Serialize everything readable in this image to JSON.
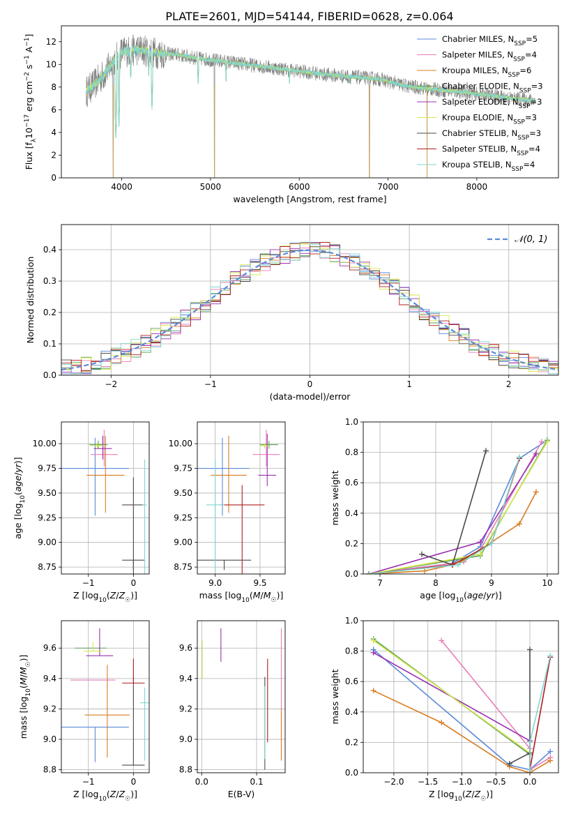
{
  "title": "PLATE=2601, MJD=54144, FIBERID=0628, z=0.064",
  "colors": {
    "chabrier_miles": "#5b8ad8",
    "salpeter_miles": "#e87cb8",
    "kroupa_miles": "#d97c22",
    "chabrier_elodie": "#5aa05a",
    "salpeter_elodie": "#9a2fb0",
    "kroupa_elodie": "#d6e84a",
    "chabrier_stelib": "#4a4a4a",
    "salpeter_stelib": "#b01c1c",
    "kroupa_stelib": "#7fd6d0",
    "data_gray": "#808080"
  },
  "legend": {
    "spectrum": [
      {
        "label": "Chabrier MILES, N",
        "sub": "SSP",
        "suffix": "=5",
        "color_key": "chabrier_miles"
      },
      {
        "label": "Salpeter MILES, N",
        "sub": "SSP",
        "suffix": "=4",
        "color_key": "salpeter_miles"
      },
      {
        "label": "Kroupa MILES, N",
        "sub": "SSP",
        "suffix": "=6",
        "color_key": "kroupa_miles"
      },
      {
        "label": "Chabrier ELODIE, N",
        "sub": "SSP",
        "suffix": "=3",
        "color_key": "chabrier_elodie"
      },
      {
        "label": "Salpeter ELODIE, N",
        "sub": "SSP",
        "suffix": "=3",
        "color_key": "salpeter_elodie"
      },
      {
        "label": "Kroupa ELODIE, N",
        "sub": "SSP",
        "suffix": "=3",
        "color_key": "kroupa_elodie"
      },
      {
        "label": "Chabrier STELIB, N",
        "sub": "SSP",
        "suffix": "=3",
        "color_key": "chabrier_stelib"
      },
      {
        "label": "Salpeter STELIB, N",
        "sub": "SSP",
        "suffix": "=4",
        "color_key": "salpeter_stelib"
      },
      {
        "label": "Kroupa STELIB, N",
        "sub": "SSP",
        "suffix": "=4",
        "color_key": "kroupa_stelib"
      }
    ],
    "residual": "𝒩(0, 1)"
  },
  "chart_data": [
    {
      "id": "spectrum",
      "type": "line",
      "title": "PLATE=2601, MJD=54144, FIBERID=0628, z=0.064",
      "xlabel": "wavelength [Angstrom, rest frame]",
      "ylabel": "Flux [f",
      "ylabel_full": "Flux [f_λ 10^-17 erg cm^-2 s^-1 A^-1]",
      "xlim": [
        3320,
        8920
      ],
      "ylim": [
        0,
        13.4
      ],
      "xticks": [
        4000,
        5000,
        6000,
        7000,
        8000
      ],
      "yticks": [
        0,
        2,
        4,
        6,
        8,
        10,
        12
      ],
      "continuum": [
        [
          3600,
          7.6
        ],
        [
          3700,
          8.3
        ],
        [
          3800,
          9.1
        ],
        [
          3900,
          10.2
        ],
        [
          4000,
          11.1
        ],
        [
          4200,
          11.3
        ],
        [
          4400,
          11.0
        ],
        [
          4600,
          10.9
        ],
        [
          4800,
          10.6
        ],
        [
          5000,
          10.4
        ],
        [
          5200,
          10.2
        ],
        [
          5500,
          9.9
        ],
        [
          5800,
          9.6
        ],
        [
          6000,
          9.4
        ],
        [
          6300,
          9.1
        ],
        [
          6600,
          8.9
        ],
        [
          6900,
          8.7
        ],
        [
          7200,
          8.1
        ],
        [
          7500,
          7.8
        ],
        [
          7800,
          7.6
        ],
        [
          8100,
          7.3
        ],
        [
          8400,
          7.0
        ],
        [
          8650,
          6.8
        ]
      ],
      "absorption_lines": [
        [
          3934,
          3.2
        ],
        [
          3969,
          4.5
        ],
        [
          4102,
          8.5
        ],
        [
          4305,
          9.0
        ],
        [
          4341,
          6.0
        ],
        [
          4861,
          8.0
        ],
        [
          5175,
          8.5
        ],
        [
          5890,
          8.0
        ],
        [
          6563,
          8.0
        ]
      ],
      "sky_artifacts": [
        [
          3905,
          0.0
        ],
        [
          5045,
          0.0
        ],
        [
          6790,
          0.0
        ],
        [
          7440,
          0.0
        ]
      ]
    },
    {
      "id": "residuals",
      "type": "line",
      "xlabel": "(data-model)/error",
      "ylabel": "Normed distribution",
      "xlim": [
        -2.5,
        2.5
      ],
      "ylim": [
        0,
        0.48
      ],
      "xticks": [
        -2,
        -1,
        0,
        1,
        2
      ],
      "yticks": [
        0.0,
        0.1,
        0.2,
        0.3,
        0.4
      ],
      "grid": true,
      "legend_position": "top-right",
      "series": [
        {
          "name": "𝒩(0, 1)",
          "color_key": "chabrier_miles",
          "style": "dashed",
          "function": "normal_pdf"
        }
      ]
    },
    {
      "id": "age_vs_Z",
      "type": "scatter",
      "xlabel": "Z [log",
      "xlabel_full": "Z [log10(Z/Z☉)]",
      "ylabel": "age  [log",
      "ylabel_full": "age [log10(age/yr)]",
      "xlim": [
        -1.6,
        0.35
      ],
      "ylim": [
        8.68,
        10.22
      ],
      "xticks": [
        -1,
        0
      ],
      "yticks": [
        8.75,
        9.0,
        9.25,
        9.5,
        9.75,
        10.0
      ],
      "grid": true,
      "points": [
        {
          "series": "chabrier_miles",
          "x": -0.85,
          "y": 9.75,
          "xerr": 0.75,
          "yerr": [
            0.48,
            0.31
          ]
        },
        {
          "series": "salpeter_miles",
          "x": -0.65,
          "y": 9.89,
          "xerr": 0.3,
          "yerr": [
            0.12,
            0.25
          ]
        },
        {
          "series": "kroupa_miles",
          "x": -0.62,
          "y": 9.68,
          "xerr": 0.42,
          "yerr": [
            0.38,
            0.4
          ]
        },
        {
          "series": "chabrier_elodie",
          "x": -0.78,
          "y": 9.99,
          "xerr": 0.2,
          "yerr": [
            0.04,
            0.04
          ]
        },
        {
          "series": "salpeter_elodie",
          "x": -0.68,
          "y": 9.95,
          "xerr": 0.2,
          "yerr": [
            0.11,
            0.13
          ]
        },
        {
          "series": "kroupa_elodie",
          "x": -0.8,
          "y": 9.98,
          "xerr": 0.15,
          "yerr": [
            0.03,
            0.03
          ]
        },
        {
          "series": "chabrier_stelib",
          "x": 0.0,
          "y": 9.38,
          "xerr": 0.25,
          "yerr": [
            0.7,
            0.28
          ]
        },
        {
          "series": "chabrier_stelib",
          "x": 0.0,
          "y": 8.82,
          "xerr": 0.25,
          "yerr": [
            0.1,
            0.0
          ]
        },
        {
          "series": "kroupa_stelib",
          "x": 0.25,
          "y": 9.38,
          "xerr": 0.05,
          "yerr": [
            0.7,
            0.46
          ]
        }
      ]
    },
    {
      "id": "age_vs_mass",
      "type": "scatter",
      "xlabel": "mass [log",
      "xlabel_full": "mass [log10(M/M☉)]",
      "xlim": [
        8.8,
        9.78
      ],
      "ylim": [
        8.68,
        10.22
      ],
      "xticks": [
        9.0,
        9.5
      ],
      "yticks": [
        8.75,
        9.0,
        9.25,
        9.5,
        9.75,
        10.0
      ],
      "grid": true,
      "points": [
        {
          "series": "chabrier_miles",
          "x": 9.08,
          "y": 9.75,
          "xerr": 0.3,
          "yerr": [
            0.48,
            0.31
          ]
        },
        {
          "series": "salpeter_miles",
          "x": 9.57,
          "y": 9.89,
          "xerr": 0.15,
          "yerr": [
            0.12,
            0.25
          ]
        },
        {
          "series": "kroupa_miles",
          "x": 9.15,
          "y": 9.68,
          "xerr": 0.2,
          "yerr": [
            0.38,
            0.4
          ]
        },
        {
          "series": "chabrier_elodie",
          "x": 9.6,
          "y": 9.99,
          "xerr": 0.1,
          "yerr": [
            0.04,
            0.04
          ]
        },
        {
          "series": "salpeter_elodie",
          "x": 9.58,
          "y": 9.68,
          "xerr": 0.1,
          "yerr": [
            0.11,
            0.42
          ]
        },
        {
          "series": "kroupa_elodie",
          "x": 9.55,
          "y": 9.98,
          "xerr": 0.05,
          "yerr": [
            0.03,
            0.03
          ]
        },
        {
          "series": "chabrier_stelib",
          "x": 9.1,
          "y": 8.82,
          "xerr": 0.3,
          "yerr": [
            0.1,
            0.0
          ]
        },
        {
          "series": "salpeter_stelib",
          "x": 9.3,
          "y": 9.38,
          "xerr": 0.25,
          "yerr": [
            0.7,
            0.2
          ]
        },
        {
          "series": "kroupa_stelib",
          "x": 9.0,
          "y": 9.38,
          "xerr": 0.1,
          "yerr": [
            0.7,
            0.46
          ]
        }
      ]
    },
    {
      "id": "mass_weight_vs_age",
      "type": "line",
      "xlabel": "age  [log",
      "xlabel_full": "age [log10(age/yr)]",
      "ylabel": "mass weight",
      "xlim": [
        6.7,
        10.2
      ],
      "ylim": [
        0,
        1.0
      ],
      "xticks": [
        7,
        8,
        9,
        10
      ],
      "yticks": [
        0.0,
        0.2,
        0.4,
        0.6,
        0.8,
        1.0
      ],
      "grid": true,
      "series": [
        {
          "name": "Chabrier MILES, NSSP=5",
          "color_key": "chabrier_miles",
          "x": [
            6.8,
            8.3,
            8.8,
            9.5,
            10.0
          ],
          "y": [
            0.0,
            0.07,
            0.18,
            0.76,
            0.88
          ]
        },
        {
          "name": "Salpeter MILES, NSSP=4",
          "color_key": "salpeter_miles",
          "x": [
            6.8,
            8.5,
            8.8,
            9.9
          ],
          "y": [
            0.0,
            0.08,
            0.16,
            0.87
          ]
        },
        {
          "name": "Kroupa MILES, NSSP=6",
          "color_key": "kroupa_miles",
          "x": [
            6.8,
            7.8,
            8.3,
            8.5,
            9.5,
            9.8
          ],
          "y": [
            0.0,
            0.02,
            0.06,
            0.09,
            0.33,
            0.54
          ]
        },
        {
          "name": "Chabrier ELODIE, NSSP=3",
          "color_key": "chabrier_elodie",
          "x": [
            6.8,
            8.8,
            10.0
          ],
          "y": [
            0.0,
            0.12,
            0.88
          ]
        },
        {
          "name": "Salpeter ELODIE, NSSP=3",
          "color_key": "salpeter_elodie",
          "x": [
            6.8,
            8.8,
            9.8
          ],
          "y": [
            0.0,
            0.21,
            0.79
          ]
        },
        {
          "name": "Kroupa ELODIE, NSSP=3",
          "color_key": "kroupa_elodie",
          "x": [
            6.8,
            8.8,
            10.0
          ],
          "y": [
            0.0,
            0.13,
            0.87
          ]
        },
        {
          "name": "Chabrier STELIB, NSSP=3",
          "color_key": "chabrier_stelib",
          "x": [
            7.75,
            8.3,
            8.9
          ],
          "y": [
            0.13,
            0.06,
            0.81
          ]
        },
        {
          "name": "Salpeter STELIB, NSSP=4",
          "color_key": "salpeter_stelib",
          "x": [
            6.8,
            8.3,
            9.0,
            9.5
          ],
          "y": [
            0.0,
            0.06,
            0.2,
            0.76
          ]
        },
        {
          "name": "Kroupa STELIB, NSSP=4",
          "color_key": "kroupa_stelib",
          "x": [
            6.8,
            8.4,
            9.0,
            9.5
          ],
          "y": [
            0.0,
            0.06,
            0.2,
            0.77
          ]
        }
      ]
    },
    {
      "id": "mass_vs_Z",
      "type": "scatter",
      "xlabel": "Z [log",
      "xlabel_full": "Z [log10(Z/Z☉)]",
      "ylabel": "mass [log",
      "ylabel_full": "mass [log10(M/M☉)]",
      "xlim": [
        -1.6,
        0.35
      ],
      "ylim": [
        8.78,
        9.78
      ],
      "xticks": [
        -1,
        0
      ],
      "yticks": [
        8.8,
        9.0,
        9.2,
        9.4,
        9.6
      ],
      "grid": true,
      "points": [
        {
          "series": "chabrier_miles",
          "x": -0.85,
          "y": 9.08,
          "xerr": 0.75,
          "yerr": [
            0.23,
            0.0
          ]
        },
        {
          "series": "salpeter_miles",
          "x": -0.9,
          "y": 9.39,
          "xerr": 0.5,
          "yerr": [
            0.0,
            0.0
          ]
        },
        {
          "series": "kroupa_miles",
          "x": -0.58,
          "y": 9.16,
          "xerr": 0.5,
          "yerr": [
            0.28,
            0.33
          ]
        },
        {
          "series": "chabrier_elodie",
          "x": -0.95,
          "y": 9.6,
          "xerr": 0.35,
          "yerr": [
            0.0,
            0.0
          ]
        },
        {
          "series": "salpeter_elodie",
          "x": -0.75,
          "y": 9.55,
          "xerr": 0.3,
          "yerr": [
            0.0,
            0.18
          ]
        },
        {
          "series": "kroupa_elodie",
          "x": -0.9,
          "y": 9.58,
          "xerr": 0.2,
          "yerr": [
            0.0,
            0.06
          ]
        },
        {
          "series": "chabrier_stelib",
          "x": 0.0,
          "y": 8.83,
          "xerr": 0.25,
          "yerr": [
            0.0,
            0.58
          ]
        },
        {
          "series": "salpeter_stelib",
          "x": 0.0,
          "y": 9.37,
          "xerr": 0.25,
          "yerr": [
            0.0,
            0.16
          ]
        },
        {
          "series": "kroupa_stelib",
          "x": 0.25,
          "y": 9.24,
          "xerr": 0.1,
          "yerr": [
            0.38,
            0.1
          ]
        }
      ]
    },
    {
      "id": "mass_vs_ebv",
      "type": "scatter",
      "xlabel": "E(B-V)",
      "xlim": [
        -0.008,
        0.152
      ],
      "ylim": [
        8.78,
        9.78
      ],
      "xticks": [
        0.0,
        0.1
      ],
      "yticks": [
        8.8,
        9.0,
        9.2,
        9.4,
        9.6
      ],
      "grid": true,
      "points": [
        {
          "series": "kroupa_elodie",
          "x": 0.001,
          "y": 9.55,
          "xerr": 0.0,
          "yerr": [
            0.15,
            0.1
          ]
        },
        {
          "series": "salpeter_elodie",
          "x": 0.035,
          "y": 9.6,
          "xerr": 0.0,
          "yerr": [
            0.09,
            0.13
          ]
        },
        {
          "series": "chabrier_stelib",
          "x": 0.115,
          "y": 9.2,
          "xerr": 0.0,
          "yerr": [
            0.4,
            0.21
          ]
        },
        {
          "series": "kroupa_stelib",
          "x": 0.115,
          "y": 9.15,
          "xerr": 0.0,
          "yerr": [
            0.28,
            0.2
          ]
        },
        {
          "series": "salpeter_stelib",
          "x": 0.12,
          "y": 9.25,
          "xerr": 0.0,
          "yerr": [
            0.27,
            0.28
          ]
        },
        {
          "series": "salpeter_miles",
          "x": 0.145,
          "y": 9.35,
          "xerr": 0.0,
          "yerr": [
            0.47,
            0.38
          ]
        },
        {
          "series": "kroupa_miles",
          "x": 0.145,
          "y": 9.2,
          "xerr": 0.0,
          "yerr": [
            0.34,
            0.0
          ]
        }
      ]
    },
    {
      "id": "mass_weight_vs_Z",
      "type": "line",
      "xlabel": "Z [log",
      "xlabel_full": "Z [log10(Z/Z☉)]",
      "ylabel": "mass weight",
      "xlim": [
        -2.45,
        0.42
      ],
      "ylim": [
        0,
        1.0
      ],
      "xticks": [
        -2.0,
        -1.5,
        -1.0,
        -0.5,
        0.0
      ],
      "yticks": [
        0.0,
        0.2,
        0.4,
        0.6,
        0.8,
        1.0
      ],
      "grid": true,
      "series": [
        {
          "name": "Chabrier MILES, NSSP=5",
          "color_key": "chabrier_miles",
          "x": [
            -2.3,
            -0.3,
            0.0,
            0.3
          ],
          "y": [
            0.81,
            0.05,
            0.02,
            0.14
          ]
        },
        {
          "name": "Salpeter MILES, NSSP=4",
          "color_key": "salpeter_miles",
          "x": [
            -1.3,
            0.0,
            0.0,
            0.3
          ],
          "y": [
            0.87,
            0.16,
            0.02,
            0.1
          ]
        },
        {
          "name": "Kroupa MILES, NSSP=6",
          "color_key": "kroupa_miles",
          "x": [
            -2.3,
            -1.3,
            -0.3,
            0.0,
            0.3
          ],
          "y": [
            0.54,
            0.33,
            0.04,
            0.0,
            0.08
          ]
        },
        {
          "name": "Chabrier ELODIE, NSSP=3",
          "color_key": "chabrier_elodie",
          "x": [
            -2.3,
            0.0
          ],
          "y": [
            0.88,
            0.12
          ]
        },
        {
          "name": "Salpeter ELODIE, NSSP=3",
          "color_key": "salpeter_elodie",
          "x": [
            -2.3,
            0.0
          ],
          "y": [
            0.79,
            0.21
          ]
        },
        {
          "name": "Kroupa ELODIE, NSSP=3",
          "color_key": "kroupa_elodie",
          "x": [
            -2.3,
            0.0
          ],
          "y": [
            0.87,
            0.13
          ]
        },
        {
          "name": "Chabrier STELIB, NSSP=3",
          "color_key": "chabrier_stelib",
          "x": [
            -0.3,
            0.0,
            0.0
          ],
          "y": [
            0.06,
            0.13,
            0.81
          ]
        },
        {
          "name": "Salpeter STELIB, NSSP=4",
          "color_key": "salpeter_stelib",
          "x": [
            0.0,
            0.0,
            0.3
          ],
          "y": [
            0.2,
            0.02,
            0.76
          ]
        },
        {
          "name": "Kroupa STELIB, NSSP=4",
          "color_key": "kroupa_stelib",
          "x": [
            0.0,
            0.0,
            0.3
          ],
          "y": [
            0.02,
            0.2,
            0.77
          ]
        }
      ]
    }
  ]
}
